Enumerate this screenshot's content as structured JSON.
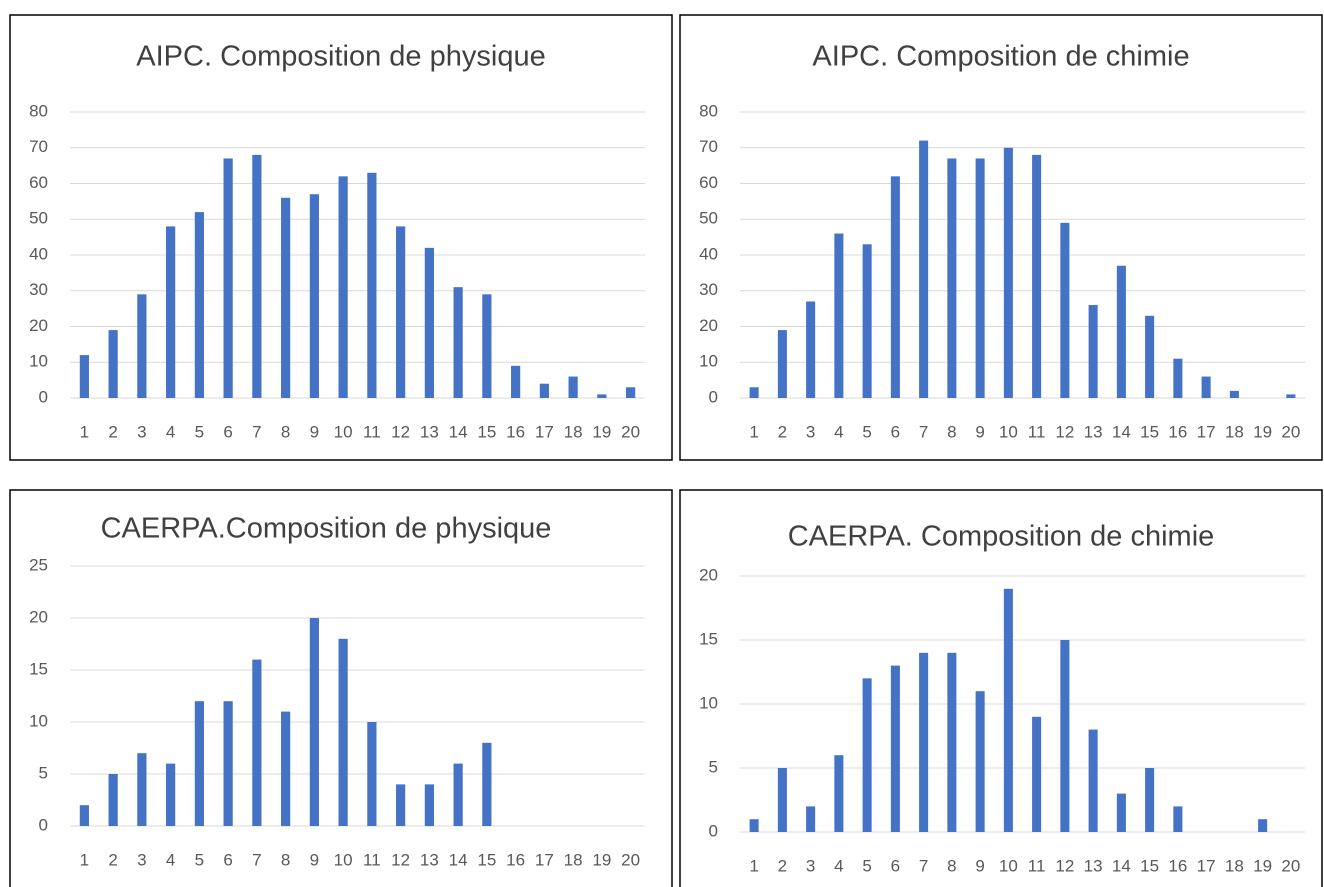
{
  "chart_data": [
    {
      "type": "bar",
      "title": "AIPC. Composition de physique",
      "categories": [
        1,
        2,
        3,
        4,
        5,
        6,
        7,
        8,
        9,
        10,
        11,
        12,
        13,
        14,
        15,
        16,
        17,
        18,
        19,
        20
      ],
      "values": [
        12,
        19,
        29,
        48,
        52,
        67,
        68,
        56,
        57,
        62,
        63,
        48,
        42,
        31,
        29,
        9,
        4,
        6,
        1,
        3
      ],
      "color": "#4472c4",
      "ylim": [
        0,
        80
      ],
      "yticks": [
        0,
        10,
        20,
        30,
        40,
        50,
        60,
        70,
        80
      ],
      "grid": true
    },
    {
      "type": "bar",
      "title": "AIPC. Composition de chimie",
      "categories": [
        1,
        2,
        3,
        4,
        5,
        6,
        7,
        8,
        9,
        10,
        11,
        12,
        13,
        14,
        15,
        16,
        17,
        18,
        19,
        20
      ],
      "values": [
        3,
        19,
        27,
        46,
        43,
        62,
        72,
        67,
        67,
        70,
        68,
        49,
        26,
        37,
        23,
        11,
        6,
        2,
        0,
        1
      ],
      "color": "#4472c4",
      "ylim": [
        0,
        80
      ],
      "yticks": [
        0,
        10,
        20,
        30,
        40,
        50,
        60,
        70,
        80
      ],
      "grid": true
    },
    {
      "type": "bar",
      "title": "CAERPA.Composition de physique",
      "categories": [
        1,
        2,
        3,
        4,
        5,
        6,
        7,
        8,
        9,
        10,
        11,
        12,
        13,
        14,
        15,
        16,
        17,
        18,
        19,
        20
      ],
      "values": [
        2,
        5,
        7,
        6,
        12,
        12,
        16,
        11,
        20,
        18,
        10,
        4,
        4,
        6,
        8,
        0,
        0,
        0,
        0,
        0
      ],
      "color": "#4472c4",
      "ylim": [
        0,
        25
      ],
      "yticks": [
        0,
        5,
        10,
        15,
        20,
        25
      ],
      "grid": true
    },
    {
      "type": "bar",
      "title": "CAERPA. Composition de chimie",
      "categories": [
        1,
        2,
        3,
        4,
        5,
        6,
        7,
        8,
        9,
        10,
        11,
        12,
        13,
        14,
        15,
        16,
        17,
        18,
        19,
        20
      ],
      "values": [
        1,
        5,
        2,
        6,
        12,
        13,
        14,
        14,
        11,
        19,
        9,
        15,
        8,
        3,
        5,
        2,
        0,
        0,
        1,
        0
      ],
      "color": "#4472c4",
      "ylim": [
        0,
        20
      ],
      "yticks": [
        0,
        5,
        10,
        15,
        20
      ],
      "grid": true
    }
  ]
}
